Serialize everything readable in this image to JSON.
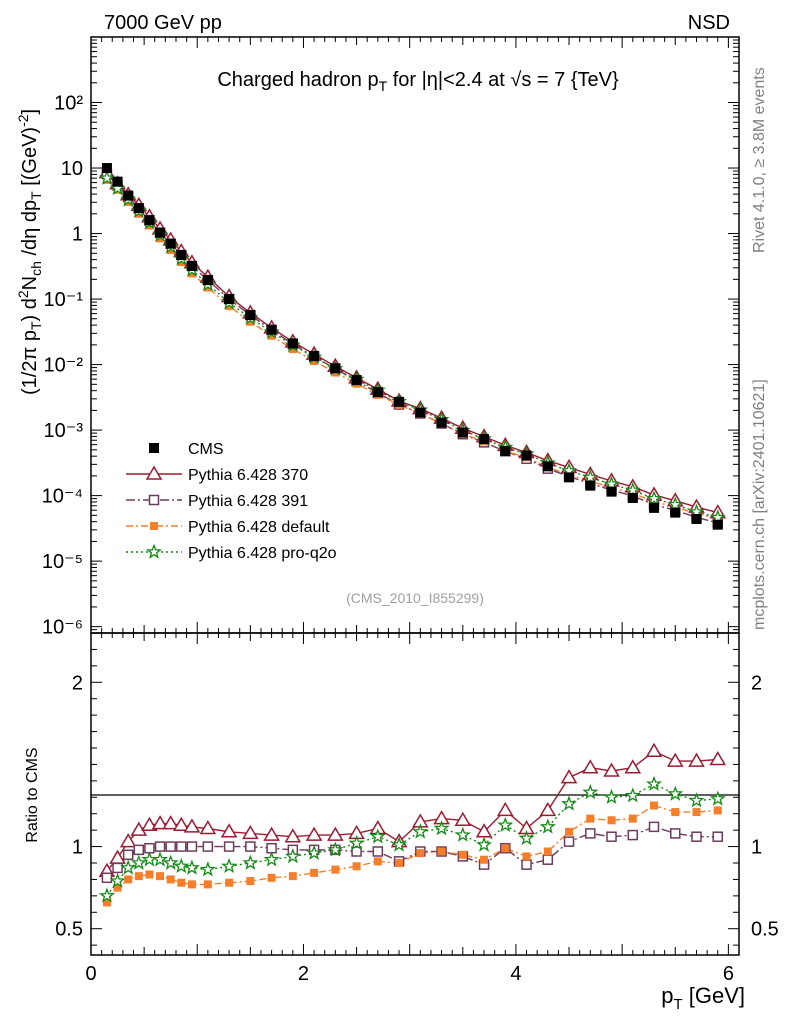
{
  "header": {
    "left": "7000 GeV pp",
    "right": "NSD"
  },
  "side": {
    "top": "Rivet 4.1.0, ≥ 3.8M events",
    "bottom": "mcplots.cern.ch [arXiv:2401.10621]"
  },
  "chart_data": [
    {
      "type": "scatter",
      "title": "Charged hadron p_T for |η|<2.4 at √s = 7 {TeV}",
      "ylabel": "(1/2π p_T) d²N_ch/dη dp_T [(GeV)⁻²]",
      "yscale": "log",
      "xlim": [
        0,
        6.1
      ],
      "ylim": [
        8e-07,
        1000
      ],
      "ytick_labels": [
        "10⁻⁶",
        "10⁻⁵",
        "10⁻⁴",
        "10⁻³",
        "10⁻²",
        "10⁻¹",
        "1",
        "10",
        "10²"
      ],
      "watermark": "(CMS_2010_I855299)",
      "x": [
        0.15,
        0.25,
        0.35,
        0.45,
        0.55,
        0.65,
        0.75,
        0.85,
        0.95,
        1.1,
        1.3,
        1.5,
        1.7,
        1.9,
        2.1,
        2.3,
        2.5,
        2.7,
        2.9,
        3.1,
        3.3,
        3.5,
        3.7,
        3.9,
        4.1,
        4.3,
        4.5,
        4.7,
        4.9,
        5.1,
        5.3,
        5.5,
        5.7,
        5.9
      ],
      "series": [
        {
          "name": "CMS",
          "style": "data",
          "values": [
            10.0,
            6.2,
            3.8,
            2.45,
            1.6,
            1.03,
            0.7,
            0.47,
            0.32,
            0.195,
            0.1,
            0.057,
            0.034,
            0.021,
            0.0135,
            0.0088,
            0.0058,
            0.0038,
            0.0027,
            0.00185,
            0.0013,
            0.00092,
            0.00073,
            0.00048,
            0.00041,
            0.00028,
            0.00019,
            0.000142,
            0.000115,
            9.2e-05,
            6.5e-05,
            5.5e-05,
            4.4e-05,
            3.6e-05
          ]
        },
        {
          "name": "Pythia 6.428 370",
          "color": "#9b1b30",
          "marker": "triangle",
          "dash": "",
          "ratio": [
            0.85,
            0.93,
            1.03,
            1.1,
            1.13,
            1.14,
            1.14,
            1.13,
            1.12,
            1.11,
            1.09,
            1.08,
            1.07,
            1.06,
            1.07,
            1.07,
            1.08,
            1.11,
            1.03,
            1.15,
            1.17,
            1.16,
            1.09,
            1.22,
            1.11,
            1.22,
            1.42,
            1.48,
            1.46,
            1.48,
            1.58,
            1.52,
            1.52,
            1.53
          ]
        },
        {
          "name": "Pythia 6.428 391",
          "color": "#6e3b5a",
          "marker": "square-open",
          "dash": "9,3,2,3",
          "ratio": [
            0.81,
            0.87,
            0.95,
            0.98,
            0.99,
            1.0,
            1.0,
            1.0,
            1.0,
            1.0,
            1.0,
            1.0,
            0.99,
            0.98,
            0.98,
            0.98,
            0.97,
            0.97,
            0.91,
            0.97,
            0.97,
            0.94,
            0.89,
            0.99,
            0.89,
            0.92,
            1.03,
            1.08,
            1.06,
            1.07,
            1.12,
            1.08,
            1.06,
            1.06
          ]
        },
        {
          "name": "Pythia 6.428 default",
          "color": "#f47e2a",
          "marker": "square-filled",
          "dash": "7,3,2,3",
          "ratio": [
            0.66,
            0.75,
            0.8,
            0.82,
            0.83,
            0.82,
            0.8,
            0.78,
            0.77,
            0.77,
            0.78,
            0.79,
            0.81,
            0.82,
            0.84,
            0.86,
            0.88,
            0.91,
            0.9,
            0.96,
            0.97,
            0.95,
            0.92,
            0.99,
            0.94,
            0.97,
            1.09,
            1.17,
            1.16,
            1.17,
            1.25,
            1.21,
            1.21,
            1.22
          ]
        },
        {
          "name": "Pythia 6.428 pro-q2o",
          "color": "#138a13",
          "marker": "star",
          "dash": "2,3",
          "ratio": [
            0.7,
            0.79,
            0.87,
            0.9,
            0.92,
            0.92,
            0.9,
            0.88,
            0.87,
            0.86,
            0.88,
            0.9,
            0.92,
            0.94,
            0.96,
            0.98,
            1.02,
            1.06,
            1.01,
            1.09,
            1.11,
            1.07,
            1.01,
            1.13,
            1.05,
            1.12,
            1.26,
            1.33,
            1.3,
            1.31,
            1.38,
            1.32,
            1.28,
            1.29
          ]
        }
      ]
    },
    {
      "type": "scatter",
      "ylabel": "Ratio to CMS",
      "xlabel": "p_T [GeV]",
      "xlim": [
        0,
        6.1
      ],
      "ylim": [
        0.34,
        2.3
      ],
      "yticks": [
        0.5,
        1,
        2
      ],
      "ytick_labels": [
        "0.5",
        "1",
        "2"
      ],
      "xticks": [
        0,
        2,
        4,
        6
      ],
      "xtick_labels": [
        "0",
        "2",
        "4",
        "6"
      ]
    }
  ]
}
